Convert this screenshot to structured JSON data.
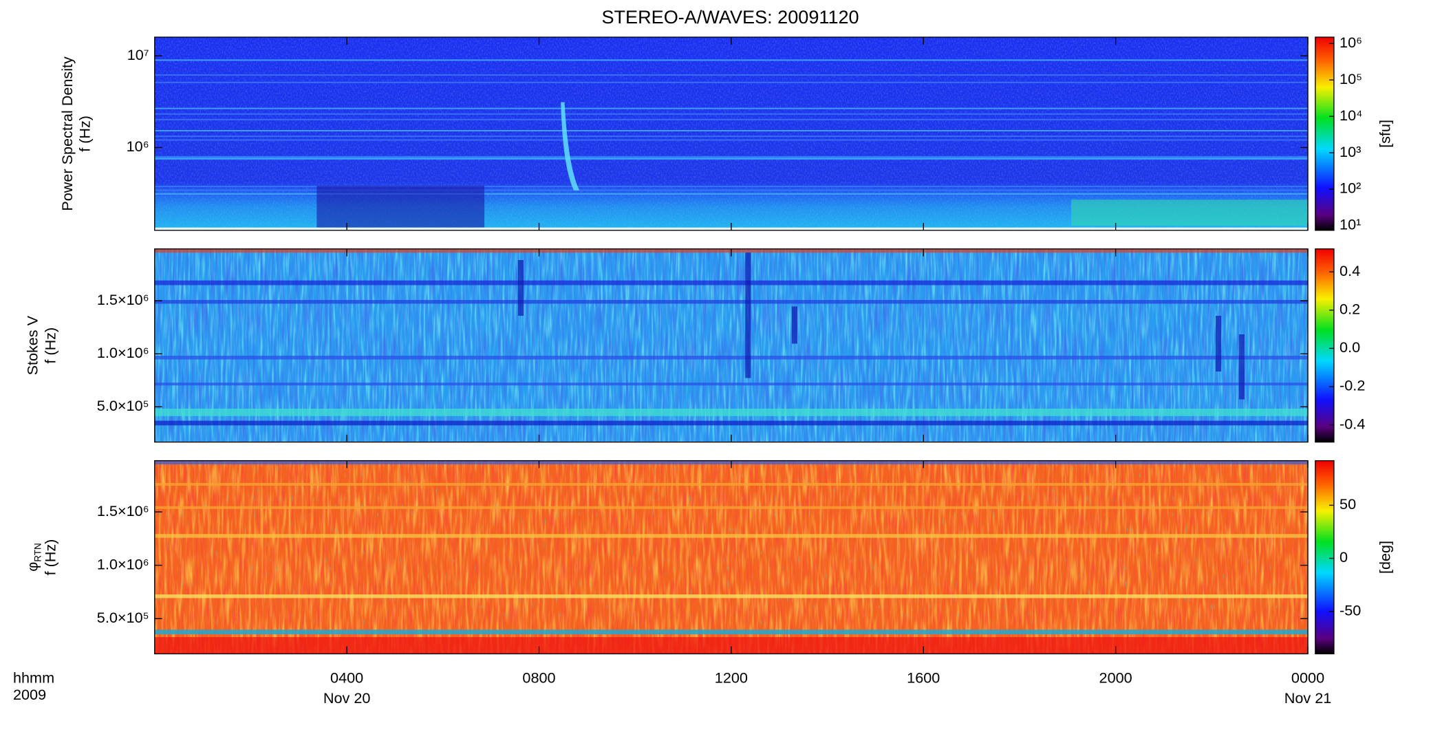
{
  "title": "STEREO-A/WAVES: 20091120",
  "x_axis": {
    "xlim": [
      0,
      24
    ],
    "xticks": [
      {
        "value": 4,
        "label": "0400"
      },
      {
        "value": 8,
        "label": "0800"
      },
      {
        "value": 12,
        "label": "1200"
      },
      {
        "value": 16,
        "label": "1600"
      },
      {
        "value": 20,
        "label": "2000"
      },
      {
        "value": 24,
        "label": "0000"
      }
    ],
    "date_labels": [
      {
        "value": 4,
        "label": "Nov 20"
      },
      {
        "value": 24,
        "label": "Nov 21"
      }
    ],
    "labels": [
      "hhmm",
      "2009"
    ]
  },
  "chart_data": [
    {
      "type": "spectrogram",
      "ylabel": [
        "Power Spectral Density",
        "f (Hz)"
      ],
      "ylog": true,
      "ylim": [
        125000,
        16000000
      ],
      "yticks": [
        {
          "value": 1000000,
          "label": "10⁶"
        },
        {
          "value": 10000000,
          "label": "10⁷"
        }
      ],
      "colorbar": {
        "colormap": "rainbow",
        "log": true,
        "clim": [
          7.4,
          1500000
        ],
        "ticks": [
          {
            "value": 10,
            "label": "10¹"
          },
          {
            "value": 100,
            "label": "10²"
          },
          {
            "value": 1000,
            "label": "10³"
          },
          {
            "value": 10000,
            "label": "10⁴"
          },
          {
            "value": 100000,
            "label": "10⁵"
          },
          {
            "value": 1000000,
            "label": "10⁶"
          }
        ],
        "label": "[sfu]"
      }
    },
    {
      "type": "spectrogram",
      "ylabel": [
        "Stokes V",
        "f (Hz)"
      ],
      "ylog": false,
      "ylim": [
        167000,
        1990000
      ],
      "yticks": [
        {
          "value": 500000,
          "label": "5.0×10⁵"
        },
        {
          "value": 1000000,
          "label": "1.0×10⁶"
        },
        {
          "value": 1500000,
          "label": "1.5×10⁶"
        }
      ],
      "colorbar": {
        "colormap": "rainbow",
        "log": false,
        "clim": [
          -0.49,
          0.52
        ],
        "ticks": [
          -0.4,
          -0.2,
          {
            "value": 0,
            "label": "0.0"
          },
          0.2,
          0.4
        ]
      }
    },
    {
      "type": "spectrogram",
      "ylabel": [
        "φ",
        "f (Hz)"
      ],
      "ylabel_sub": "RTN",
      "ylog": false,
      "ylim": [
        170000,
        1980000
      ],
      "yticks": [
        {
          "value": 500000,
          "label": "5.0×10⁵"
        },
        {
          "value": 1000000,
          "label": "1.0×10⁶"
        },
        {
          "value": 1500000,
          "label": "1.5×10⁶"
        }
      ],
      "colorbar": {
        "colormap": "rainbow",
        "log": false,
        "clim": [
          -90,
          92
        ],
        "ticks": [
          -50,
          0,
          50
        ],
        "label": "[deg]"
      }
    }
  ]
}
